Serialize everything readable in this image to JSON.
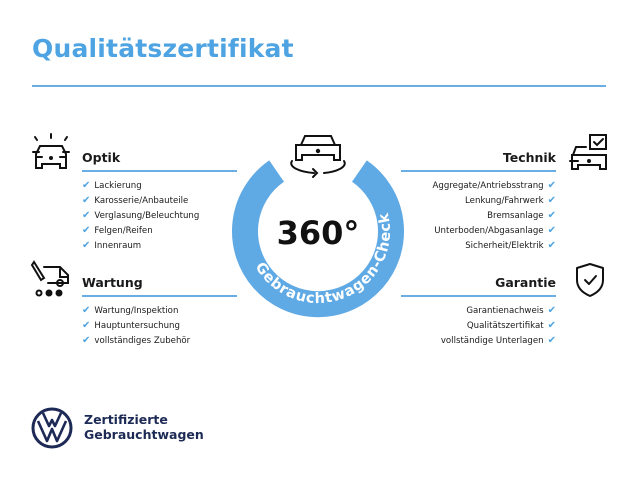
{
  "title": "Qualitätszertifikat",
  "center": {
    "degrees": "360°",
    "ring_text": "Gebrauchtwagen-Check"
  },
  "check_glyph": "✔",
  "accent_color": "#4ea4e2",
  "sections": {
    "optik": {
      "heading": "Optik",
      "icon": "car-headlights-icon",
      "items": [
        "Lackierung",
        "Karosserie/Anbauteile",
        "Verglasung/Beleuchtung",
        "Felgen/Reifen",
        "Innenraum"
      ]
    },
    "wartung": {
      "heading": "Wartung",
      "icon": "service-car-icon",
      "items": [
        "Wartung/Inspektion",
        "Hauptuntersuchung",
        "vollständiges Zubehör"
      ]
    },
    "technik": {
      "heading": "Technik",
      "icon": "car-checklist-icon",
      "items": [
        "Aggregate/Antriebsstrang",
        "Lenkung/Fahrwerk",
        "Bremsanlage",
        "Unterboden/Abgasanlage",
        "Sicherheit/Elektrik"
      ]
    },
    "garantie": {
      "heading": "Garantie",
      "icon": "shield-check-icon",
      "items": [
        "Garantienachweis",
        "Qualitätszertifikat",
        "vollständige Unterlagen"
      ]
    }
  },
  "brand": {
    "line1": "Zertifizierte",
    "line2": "Gebrauchtwagen"
  }
}
